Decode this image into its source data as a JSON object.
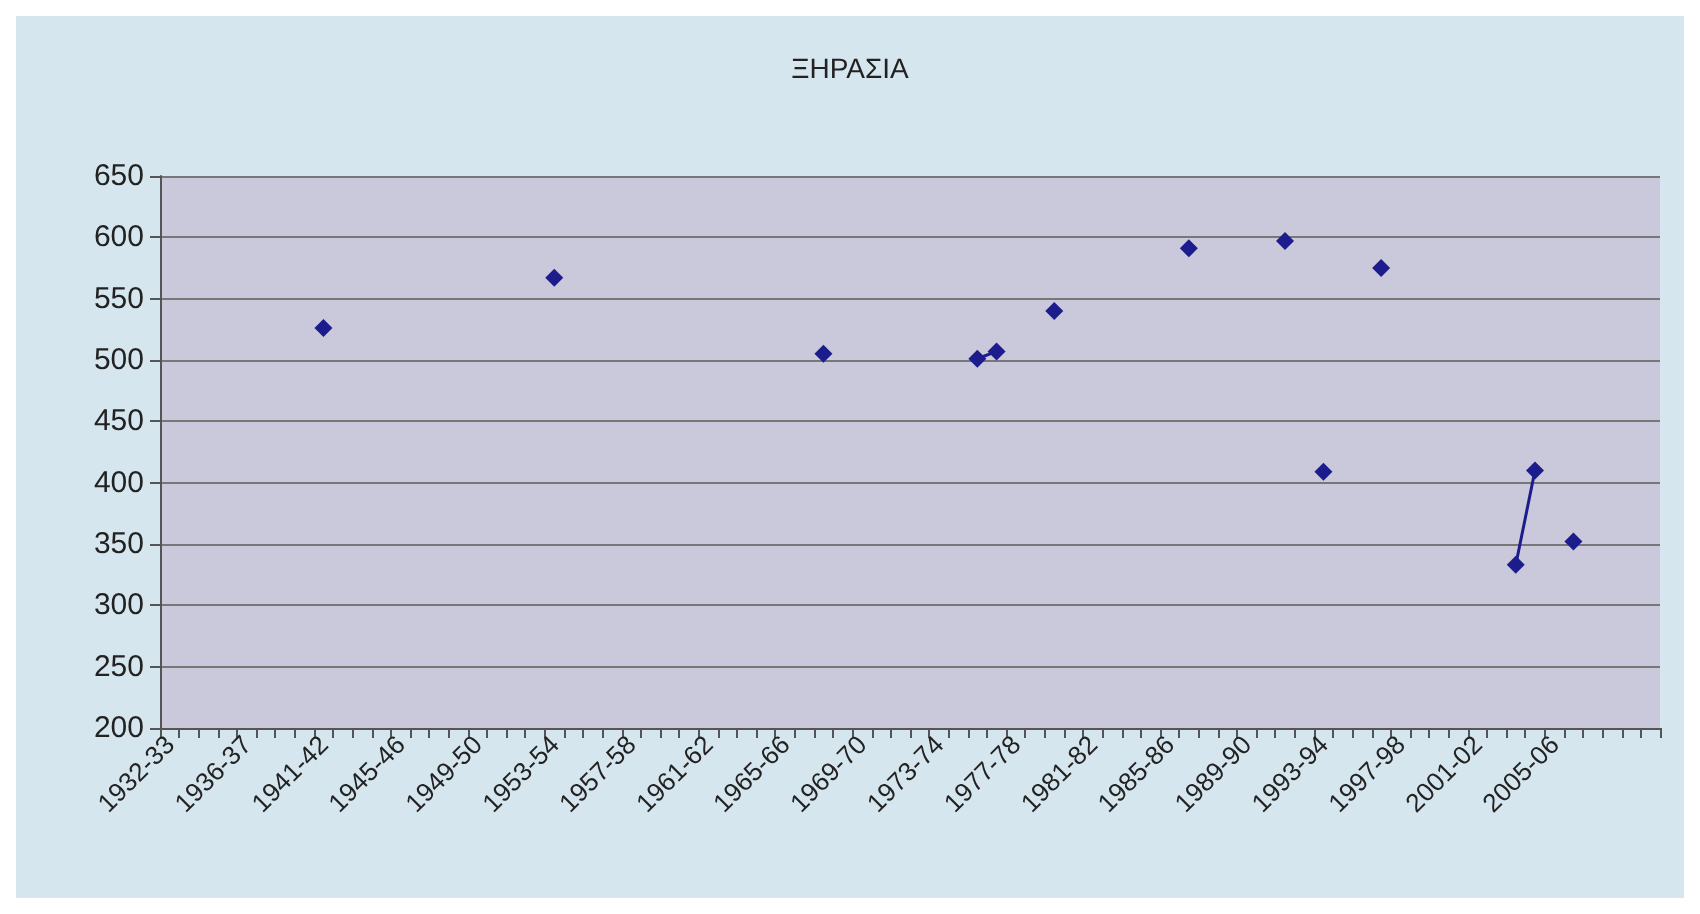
{
  "chart_data": {
    "type": "line",
    "title": "ΞΗΡΑΣΙΑ",
    "categories": [
      "1932-33",
      null,
      null,
      null,
      "1936-37",
      null,
      null,
      null,
      "1941-42",
      null,
      null,
      null,
      "1945-46",
      null,
      null,
      null,
      "1949-50",
      null,
      null,
      null,
      "1953-54",
      null,
      null,
      null,
      "1957-58",
      null,
      null,
      null,
      "1961-62",
      null,
      null,
      null,
      "1965-66",
      null,
      null,
      null,
      "1969-70",
      null,
      null,
      null,
      "1973-74",
      null,
      null,
      null,
      "1977-78",
      null,
      null,
      null,
      "1981-82",
      null,
      null,
      null,
      "1985-86",
      null,
      null,
      null,
      "1989-90",
      null,
      null,
      null,
      "1993-94",
      null,
      null,
      null,
      "1997-98",
      null,
      null,
      null,
      "2001-02",
      null,
      null,
      null,
      "2005-06",
      null,
      null,
      null,
      null,
      null
    ],
    "series": [
      {
        "color": "#1c1c8c",
        "values": [
          null,
          null,
          null,
          null,
          null,
          null,
          null,
          null,
          526,
          null,
          null,
          null,
          null,
          null,
          null,
          null,
          null,
          null,
          null,
          null,
          567,
          null,
          null,
          null,
          null,
          null,
          null,
          null,
          null,
          null,
          null,
          null,
          null,
          null,
          505,
          null,
          null,
          null,
          null,
          null,
          null,
          null,
          501,
          507,
          null,
          null,
          540,
          null,
          null,
          null,
          null,
          null,
          null,
          591,
          null,
          null,
          null,
          null,
          597,
          null,
          409,
          null,
          null,
          575,
          null,
          null,
          null,
          null,
          null,
          null,
          333,
          410,
          null,
          352,
          null,
          null,
          null,
          null
        ]
      }
    ],
    "ylim": [
      200,
      650
    ],
    "yticks": [
      200,
      250,
      300,
      350,
      400,
      450,
      500,
      550,
      600,
      650
    ],
    "grid": "y",
    "marker": "diamond",
    "line_style": "solid"
  }
}
